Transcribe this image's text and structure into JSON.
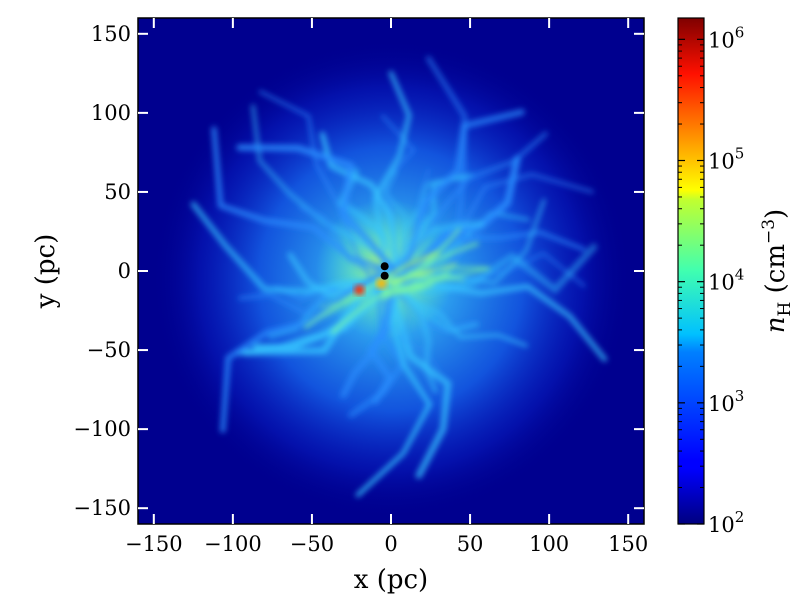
{
  "chart_data": {
    "type": "heatmap",
    "title": "",
    "xlabel": "x (pc)",
    "ylabel": "y (pc)",
    "xlim": [
      -160,
      160
    ],
    "ylim": [
      -160,
      160
    ],
    "xticks": [
      -150,
      -100,
      -50,
      0,
      50,
      100,
      150
    ],
    "yticks": [
      -150,
      -100,
      -50,
      0,
      50,
      100,
      150
    ],
    "xtick_labels": [
      "−150",
      "−100",
      "−50",
      "0",
      "50",
      "100",
      "150"
    ],
    "ytick_labels": [
      "−150",
      "−100",
      "−50",
      "0",
      "50",
      "100",
      "150"
    ],
    "grid": false,
    "colorbar": {
      "label_main": "n",
      "label_sub": "H",
      "label_unit": " (cm",
      "label_exp": "−3",
      "label_close": ")",
      "scale": "log",
      "range": [
        100,
        1500000
      ],
      "colormap": "jet",
      "ticks": [
        {
          "value": 100,
          "base": "10",
          "exp": "2"
        },
        {
          "value": 1000,
          "base": "10",
          "exp": "3"
        },
        {
          "value": 10000,
          "base": "10",
          "exp": "4"
        },
        {
          "value": 100000,
          "base": "10",
          "exp": "5"
        },
        {
          "value": 1000000,
          "base": "10",
          "exp": "6"
        }
      ]
    },
    "markers": [
      {
        "x": -4,
        "y": 3,
        "color": "#000000"
      },
      {
        "x": -4,
        "y": -3,
        "color": "#000000"
      }
    ],
    "peaks": [
      {
        "x": -20,
        "y": -12,
        "value": 300000
      },
      {
        "x": -6,
        "y": -8,
        "value": 80000
      }
    ]
  }
}
